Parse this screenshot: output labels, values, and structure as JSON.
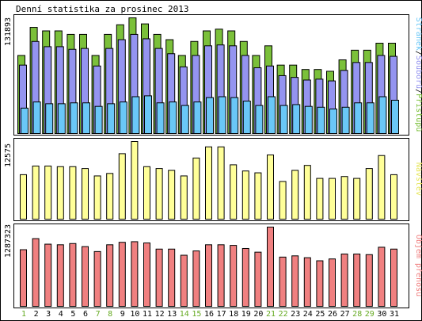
{
  "title": "Denní statistika za prosinec 2013",
  "colors": {
    "background": "#ffffff",
    "frame": "#000000",
    "pages": "#6ac7f7",
    "files": "#9494f0",
    "hits": "#7bc03a",
    "visits": "#ffff99",
    "volume": "#f08080",
    "weekend_day_label": "#66aa22",
    "weekday_label": "#000000"
  },
  "chart_data": [
    {
      "type": "bar",
      "panel": "hits-files-pages",
      "categories": [
        "1",
        "2",
        "3",
        "4",
        "5",
        "6",
        "7",
        "8",
        "9",
        "10",
        "11",
        "12",
        "13",
        "14",
        "15",
        "16",
        "17",
        "18",
        "19",
        "20",
        "21",
        "22",
        "23",
        "24",
        "25",
        "26",
        "27",
        "28",
        "29",
        "30",
        "31"
      ],
      "weekend_days": [
        "1",
        "7",
        "8",
        "14",
        "15",
        "21",
        "22",
        "28",
        "29"
      ],
      "ymax_label": "131893",
      "ylim": [
        0,
        131893
      ],
      "side_label_parts": [
        "Stránek",
        "/",
        "Souborů",
        "/",
        "Přístupů"
      ],
      "series": [
        {
          "name": "Přístupů",
          "color": "#7bc03a",
          "values": [
            89000,
            121000,
            117000,
            117000,
            113000,
            113000,
            89000,
            113000,
            124000,
            131893,
            125000,
            113000,
            107000,
            89000,
            105000,
            117000,
            119000,
            117000,
            105000,
            89000,
            100000,
            78000,
            78000,
            73000,
            73000,
            71000,
            84000,
            95000,
            95000,
            103000,
            103000
          ]
        },
        {
          "name": "Souborů",
          "color": "#9494f0",
          "values": [
            78000,
            105000,
            99000,
            99000,
            96000,
            97000,
            77000,
            97000,
            107000,
            113000,
            108000,
            97000,
            91000,
            76000,
            89000,
            100000,
            101000,
            100000,
            89000,
            75000,
            77000,
            66000,
            64000,
            61000,
            62000,
            60000,
            72000,
            81000,
            81000,
            89000,
            88000
          ]
        },
        {
          "name": "Stránek",
          "color": "#6ac7f7",
          "values": [
            29000,
            36000,
            34000,
            34000,
            35000,
            35000,
            31000,
            34000,
            36000,
            42000,
            43000,
            35000,
            36000,
            32000,
            36000,
            41000,
            42000,
            41000,
            37000,
            32000,
            42000,
            32000,
            33000,
            31000,
            30000,
            28000,
            30000,
            35000,
            35000,
            42000,
            38000
          ]
        }
      ]
    },
    {
      "type": "bar",
      "panel": "visits",
      "categories": [
        "1",
        "2",
        "3",
        "4",
        "5",
        "6",
        "7",
        "8",
        "9",
        "10",
        "11",
        "12",
        "13",
        "14",
        "15",
        "16",
        "17",
        "18",
        "19",
        "20",
        "21",
        "22",
        "23",
        "24",
        "25",
        "26",
        "27",
        "28",
        "29",
        "30",
        "31"
      ],
      "ymax_label": "12575",
      "ylim": [
        0,
        12575
      ],
      "side_label": "Návštěv",
      "series": [
        {
          "name": "Návštěv",
          "color": "#ffff99",
          "values": [
            7200,
            8600,
            8600,
            8500,
            8500,
            8200,
            7000,
            7400,
            10600,
            12575,
            8500,
            8200,
            7900,
            7000,
            9900,
            11700,
            11700,
            8800,
            7800,
            7500,
            10400,
            6100,
            7900,
            8700,
            6600,
            6600,
            6900,
            6600,
            8200,
            10300,
            7200
          ]
        }
      ]
    },
    {
      "type": "bar",
      "panel": "volume",
      "categories": [
        "1",
        "2",
        "3",
        "4",
        "5",
        "6",
        "7",
        "8",
        "9",
        "10",
        "11",
        "12",
        "13",
        "14",
        "15",
        "16",
        "17",
        "18",
        "19",
        "20",
        "21",
        "22",
        "23",
        "24",
        "25",
        "26",
        "27",
        "28",
        "29",
        "30",
        "31"
      ],
      "ymax_label": "1287323",
      "ylim": [
        0,
        1287323
      ],
      "side_label": "Objem přenosu",
      "series": [
        {
          "name": "Objem přenosu",
          "color": "#f08080",
          "values": [
            920000,
            1100000,
            1010000,
            1000000,
            1020000,
            970000,
            890000,
            1000000,
            1040000,
            1050000,
            1030000,
            930000,
            930000,
            830000,
            900000,
            1000000,
            1000000,
            990000,
            940000,
            880000,
            1287323,
            800000,
            820000,
            790000,
            740000,
            770000,
            850000,
            850000,
            840000,
            960000,
            930000
          ]
        }
      ]
    }
  ]
}
